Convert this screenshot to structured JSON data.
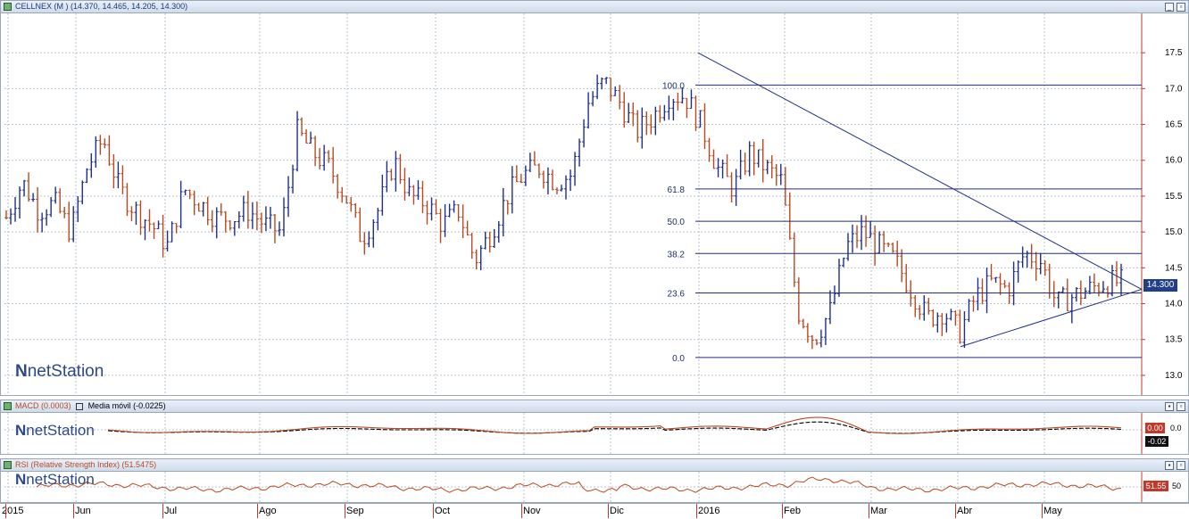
{
  "price_panel": {
    "title": "CELLNEX (M ) (14.370, 14.465, 14.205, 14.300)",
    "last_price": "14.300",
    "y_ticks": [
      "17.5",
      "17.0",
      "16.5",
      "16.0",
      "15.5",
      "15.0",
      "14.5",
      "14.0",
      "13.5",
      "13.0"
    ],
    "fib_levels": [
      "100.0",
      "61.8",
      "50.0",
      "38.2",
      "23.6",
      "0.0"
    ]
  },
  "macd_panel": {
    "title_macd": "MACD (0.0003)",
    "title_signal": "Media móvil (-0.0225)",
    "tick": "0.0",
    "value_badge": "0.00",
    "signal_badge": "-0.02"
  },
  "rsi_panel": {
    "title": "RSI (Relative Strength Index) (51.5475)",
    "tick": "50",
    "value_badge": "51.55"
  },
  "x_axis": {
    "labels": [
      "2015",
      "Jun",
      "Jul",
      "Ago",
      "Sep",
      "Oct",
      "Nov",
      "Dic",
      "2016",
      "Feb",
      "Mar",
      "Abr",
      "May"
    ]
  },
  "watermark": "netStation",
  "colors": {
    "up": "#1f2f8a",
    "down": "#b84a22",
    "line": "#1f2f8a",
    "macd": "#b84a22",
    "signal": "#000000",
    "rsi": "#b84a22",
    "badge_red": "#c0392b",
    "badge_blue": "#1f3f8a"
  },
  "chart_data": {
    "type": "ohlc",
    "title": "CELLNEX (M )",
    "ylim": [
      12.8,
      17.9
    ],
    "x_months": [
      "2015",
      "Jun",
      "Jul",
      "Ago",
      "Sep",
      "Oct",
      "Nov",
      "Dic",
      "2016",
      "Feb",
      "Mar",
      "Abr",
      "May"
    ],
    "close_path": [
      15.2,
      15.7,
      15.3,
      15.4,
      15.0,
      15.9,
      16.3,
      15.6,
      15.3,
      15.1,
      14.8,
      15.6,
      15.4,
      15.2,
      15.2,
      15.3,
      15.1,
      15.0,
      16.4,
      16.1,
      15.9,
      15.5,
      14.9,
      15.3,
      16.0,
      15.5,
      15.4,
      15.1,
      15.3,
      14.6,
      15.0,
      15.5,
      15.8,
      15.9,
      15.7,
      15.8,
      16.8,
      17.1,
      16.8,
      16.4,
      16.6,
      16.9,
      16.9,
      16.5,
      15.9,
      15.6,
      16.1,
      15.9,
      15.7,
      13.9,
      13.5,
      13.9,
      14.8,
      15.0,
      14.8,
      14.6,
      14.2,
      13.8,
      13.9,
      13.6,
      14.1,
      14.3,
      14.2,
      14.7,
      14.6,
      14.0,
      14.1,
      14.2,
      14.3,
      14.3
    ],
    "fibonacci": {
      "levels": [
        "100.0",
        "61.8",
        "50.0",
        "38.2",
        "23.6",
        "0.0"
      ],
      "prices": [
        17.05,
        15.6,
        15.15,
        14.7,
        14.15,
        13.25
      ]
    },
    "trendlines": [
      {
        "from": [
          "Dic",
          17.5
        ],
        "to": [
          "May",
          14.2
        ]
      },
      {
        "from": [
          "Abr",
          13.4
        ],
        "to": [
          "May",
          14.2
        ]
      }
    ],
    "last": 14.3
  }
}
